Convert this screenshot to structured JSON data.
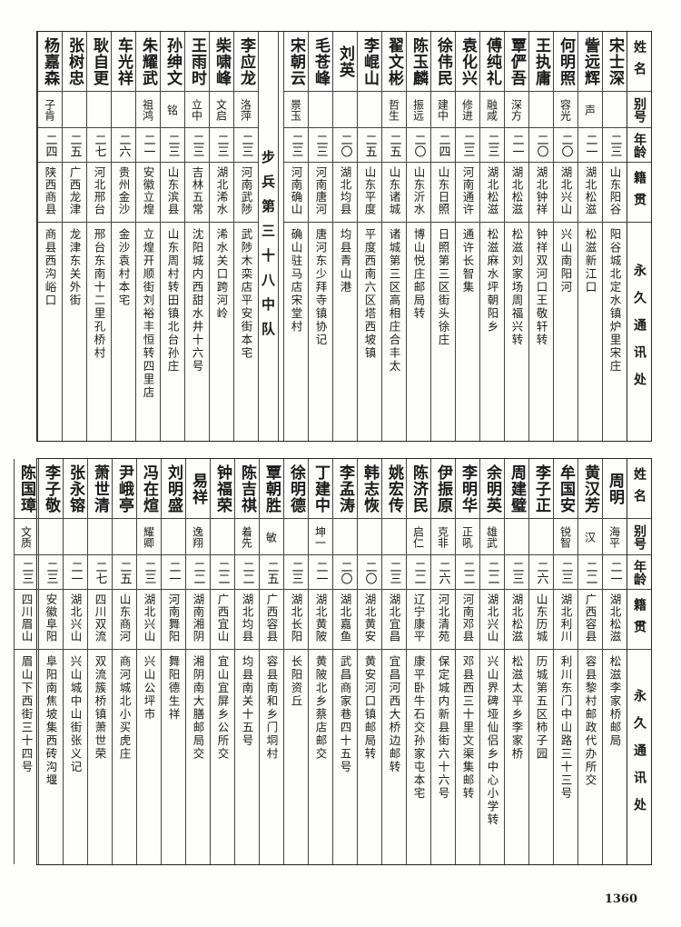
{
  "header": {
    "name": "姓名",
    "alias": "别号",
    "age": "年龄",
    "native": "籍贯",
    "address": "永久通讯处"
  },
  "top_section": {
    "records_right": [
      {
        "name": "宋士深",
        "alias": "",
        "age": "二三",
        "native": "山东阳谷",
        "address": "阳谷城北定水镇炉里宋庄"
      },
      {
        "name": "訾远辉",
        "alias": "声",
        "age": "二一",
        "native": "湖北松滋",
        "address": "松滋新江口"
      },
      {
        "name": "何明照",
        "alias": "容光",
        "age": "二〇",
        "native": "湖北兴山",
        "address": "兴山南阳河"
      },
      {
        "name": "王执庸",
        "alias": "",
        "age": "二〇",
        "native": "湖北钟祥",
        "address": "钟祥双河口王敬轩转"
      },
      {
        "name": "覃俨吾",
        "alias": "深方",
        "age": "二一",
        "native": "湖北松滋",
        "address": "松滋刘家场周福兴转"
      },
      {
        "name": "傅纯礼",
        "alias": "融咸",
        "age": "二三",
        "native": "湖北松滋",
        "address": "松滋麻水坪朝阳乡"
      },
      {
        "name": "袁化兴",
        "alias": "修进",
        "age": "二三",
        "native": "河南通许",
        "address": "通许长智集"
      },
      {
        "name": "徐伟民",
        "alias": "建中",
        "age": "二四",
        "native": "山东日照",
        "address": "日照第三区街头徐庄"
      },
      {
        "name": "陈玉麟",
        "alias": "振远",
        "age": "二〇",
        "native": "山东沂水",
        "address": "博山悦庄邮局转"
      },
      {
        "name": "翟文彬",
        "alias": "哲生",
        "age": "二五",
        "native": "山东诸城",
        "address": "诸城第三区高相庄合丰太"
      },
      {
        "name": "李崐山",
        "alias": "",
        "age": "二五",
        "native": "山东平度",
        "address": "平度西南六区塔西坡镇"
      },
      {
        "name": "刘英",
        "alias": "",
        "age": "二〇",
        "native": "湖北均县",
        "address": "均县青山港"
      },
      {
        "name": "毛苍峰",
        "alias": "",
        "age": "二三",
        "native": "河南唐河",
        "address": "唐河东少拜寺镇协记"
      },
      {
        "name": "宋朝云",
        "alias": "景玉",
        "age": "二三",
        "native": "河南确山",
        "address": "确山驻马店宋堂村"
      }
    ],
    "unit_divider": "步兵第三十八中队",
    "records_left": [
      {
        "name": "李应龙",
        "alias": "洛萍",
        "age": "二三",
        "native": "河南武陟",
        "address": "武陟木栾店平安街本宅"
      },
      {
        "name": "柴啸峰",
        "alias": "文启",
        "age": "二三",
        "native": "湖北浠水",
        "address": "浠水关口跨河岭"
      },
      {
        "name": "王雨时",
        "alias": "立中",
        "age": "二三",
        "native": "吉林五常",
        "address": "沈阳城内西甜水井十六号"
      },
      {
        "name": "孙绅文",
        "alias": "铭",
        "age": "二三",
        "native": "山东滨县",
        "address": "山东周村转田镇北台孙庄"
      },
      {
        "name": "朱耀武",
        "alias": "祖鸿",
        "age": "二一",
        "native": "安徽立煌",
        "address": "立煌开顺街刘裕丰恒转四里店"
      },
      {
        "name": "车光祥",
        "alias": "",
        "age": "二六",
        "native": "贵州金沙",
        "address": "金沙袁村本宅"
      },
      {
        "name": "耿自更",
        "alias": "",
        "age": "二七",
        "native": "河北邢台",
        "address": "邢台东南十二里孔桥村"
      },
      {
        "name": "张树忠",
        "alias": "",
        "age": "二五",
        "native": "广西龙津",
        "address": "龙津东关外街"
      },
      {
        "name": "杨嘉森",
        "alias": "子肯",
        "age": "二四",
        "native": "陕西商县",
        "address": "商县西沟峪口"
      }
    ]
  },
  "bottom_section": {
    "records": [
      {
        "name": "周明",
        "alias": "海平",
        "age": "二一",
        "native": "湖北松滋",
        "address": "松滋李家桥邮局"
      },
      {
        "name": "黄汉芳",
        "alias": "汉",
        "age": "二二",
        "native": "广西容县",
        "address": "容县黎村邮政代办所交"
      },
      {
        "name": "牟国安",
        "alias": "锐智",
        "age": "二三",
        "native": "湖北利川",
        "address": "利川东门中山路三十三号"
      },
      {
        "name": "李子正",
        "alias": "",
        "age": "二六",
        "native": "山东历城",
        "address": "历城第五区柿子园"
      },
      {
        "name": "周建璧",
        "alias": "",
        "age": "二三",
        "native": "湖北松滋",
        "address": "松滋太平乡李家桥"
      },
      {
        "name": "余明英",
        "alias": "雄武",
        "age": "二二",
        "native": "湖北兴山",
        "address": "兴山界碑垭仙侣乡中心小学转"
      },
      {
        "name": "李明华",
        "alias": "正吼",
        "age": "二二",
        "native": "河南邓县",
        "address": "邓县西三十里文渠集邮转"
      },
      {
        "name": "伊振原",
        "alias": "克非",
        "age": "二六",
        "native": "河北清苑",
        "address": "保定城内新县街六十六号"
      },
      {
        "name": "陈济民",
        "alias": "启仁",
        "age": "二二",
        "native": "辽宁康平",
        "address": "康平卧牛石交孙家屯本宅"
      },
      {
        "name": "姚宏传",
        "alias": "",
        "age": "二三",
        "native": "湖北宜昌",
        "address": "宜昌河西大桥边邮转"
      },
      {
        "name": "韩志恢",
        "alias": "",
        "age": "二〇",
        "native": "湖北黄安",
        "address": "黄安河口镇邮局转"
      },
      {
        "name": "李孟涛",
        "alias": "",
        "age": "二〇",
        "native": "湖北嘉鱼",
        "address": "武昌商家巷四十五号"
      },
      {
        "name": "丁建中",
        "alias": "坤一",
        "age": "二一",
        "native": "湖北黄陂",
        "address": "黄陂北乡蔡店邮交"
      },
      {
        "name": "徐明德",
        "alias": "",
        "age": "二三",
        "native": "湖北长阳",
        "address": "长阳资丘"
      },
      {
        "name": "覃朝胜",
        "alias": "敏",
        "age": "二五",
        "native": "广西容县",
        "address": "容县南和乡门垌村"
      },
      {
        "name": "陈吉祺",
        "alias": "着先",
        "age": "二二",
        "native": "湖北均县",
        "address": "均县南关十五号"
      },
      {
        "name": "钟福荣",
        "alias": "",
        "age": "二二",
        "native": "广西宜山",
        "address": "宜山宜屏乡公所交"
      },
      {
        "name": "易祥",
        "alias": "逸翔",
        "age": "二二",
        "native": "湖南湘阴",
        "address": "湘阴南大膳邮局交"
      },
      {
        "name": "刘明盛",
        "alias": "",
        "age": "二一",
        "native": "河南舞阳",
        "address": "舞阳德生祥"
      },
      {
        "name": "冯在煊",
        "alias": "耀卿",
        "age": "二三",
        "native": "湖北兴山",
        "address": "兴山公坪市"
      },
      {
        "name": "尹峨亭",
        "alias": "",
        "age": "二五",
        "native": "山东商河",
        "address": "商河城北小买虎庄"
      },
      {
        "name": "萧世清",
        "alias": "",
        "age": "二七",
        "native": "四川双流",
        "address": "双流簇桥镇萧世荣"
      },
      {
        "name": "张永镕",
        "alias": "",
        "age": "二一",
        "native": "湖北兴山",
        "address": "兴山城中山街张义记"
      },
      {
        "name": "李子敬",
        "alias": "",
        "age": "二三",
        "native": "安徽阜阳",
        "address": "阜阳南焦坡集西砖沟堰"
      },
      {
        "name": "陈国璋",
        "alias": "文质",
        "age": "二三",
        "native": "四川眉山",
        "address": "眉山下西街三十四号"
      }
    ]
  },
  "page_number": "1360"
}
